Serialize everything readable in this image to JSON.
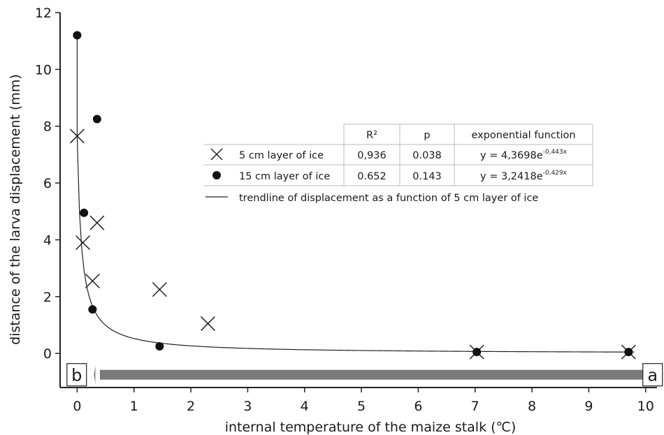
{
  "chart_data": {
    "type": "scatter",
    "xlabel": "internal temperature of the maize stalk (℃)",
    "ylabel": "distance of the larva displacement (mm)",
    "xlim": [
      -0.3,
      10.2
    ],
    "ylim": [
      -1.2,
      12
    ],
    "x_ticks": [
      "0",
      "1",
      "2",
      "3",
      "4",
      "5",
      "6",
      "7",
      "8",
      "9",
      "10"
    ],
    "y_ticks": [
      "0",
      "2",
      "4",
      "6",
      "8",
      "10",
      "12"
    ],
    "series": [
      {
        "name": "5 cm layer of ice",
        "marker": "cross",
        "points": [
          [
            0.0,
            7.65
          ],
          [
            0.1,
            3.9
          ],
          [
            0.27,
            2.55
          ],
          [
            0.35,
            4.6
          ],
          [
            1.45,
            2.25
          ],
          [
            2.3,
            1.05
          ],
          [
            7.03,
            0.05
          ],
          [
            9.7,
            0.05
          ]
        ]
      },
      {
        "name": "15 cm layer of ice",
        "marker": "dot",
        "points": [
          [
            0.0,
            11.2
          ],
          [
            0.35,
            8.25
          ],
          [
            0.12,
            4.95
          ],
          [
            0.27,
            1.55
          ],
          [
            1.45,
            0.25
          ],
          [
            7.03,
            0.05
          ],
          [
            9.7,
            0.05
          ]
        ]
      }
    ],
    "trendline": {
      "name": "trendline of displacement as a function of 5 cm layer of ice",
      "type": "power"
    },
    "table": {
      "headers": [
        "R²",
        "p",
        "exponential function"
      ],
      "rows": [
        {
          "label": "5 cm layer of ice",
          "r2": "0,936",
          "p": "0.038",
          "eq_base": "y = 4,3698e",
          "eq_exp": "-0,443x"
        },
        {
          "label": "15 cm layer of ice",
          "r2": "0.652",
          "p": "0.143",
          "eq_base": "y = 3,2418e",
          "eq_exp": "-0,429x"
        }
      ],
      "trendline_label": "trendline of displacement as a function of 5 cm layer of ice"
    },
    "arrow": {
      "from_label": "a",
      "to_label": "b",
      "color": "#7a7a7a"
    }
  }
}
